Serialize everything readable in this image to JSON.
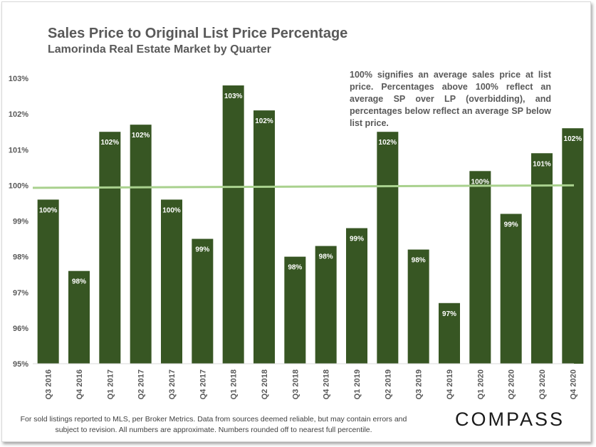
{
  "title": "Sales Price to Original List Price Percentage",
  "subtitle": "Lamorinda Real Estate Market by Quarter",
  "annotation": "100% signifies an average sales price at list price. Percentages above 100% reflect an average SP over LP (overbidding), and percentages below reflect an average SP below list price.",
  "footnote": "For sold listings reported to MLS, per Broker Metrics. Data from sources deemed reliable, but may contain errors and subject to revision. All numbers are approximate. Numbers rounded off to nearest full percentile.",
  "logo": "COMPASS",
  "colors": {
    "bar": "#375623",
    "reference_line": "#a9d18e",
    "text": "#595959"
  },
  "chart_data": {
    "type": "bar",
    "categories": [
      "Q3 2016",
      "Q4 2016",
      "Q1 2017",
      "Q2 2017",
      "Q3 2017",
      "Q4 2017",
      "Q1 2018",
      "Q2 2018",
      "Q3 2018",
      "Q4 2018",
      "Q1 2019",
      "Q2 2019",
      "Q3 2019",
      "Q4 2019",
      "Q1 2020",
      "Q2 2020",
      "Q3 2020",
      "Q4 2020"
    ],
    "values": [
      99.6,
      97.6,
      101.5,
      101.7,
      99.6,
      98.5,
      102.8,
      102.1,
      98.0,
      98.3,
      98.8,
      101.5,
      98.2,
      96.7,
      100.4,
      99.2,
      100.9,
      101.6
    ],
    "data_labels": [
      "100%",
      "98%",
      "102%",
      "102%",
      "100%",
      "99%",
      "103%",
      "102%",
      "98%",
      "98%",
      "99%",
      "102%",
      "98%",
      "97%",
      "100%",
      "99%",
      "101%",
      "102%"
    ],
    "ylim": [
      95,
      103
    ],
    "yticks": [
      95,
      96,
      97,
      98,
      99,
      100,
      101,
      102,
      103
    ],
    "ytick_labels": [
      "95%",
      "96%",
      "97%",
      "98%",
      "99%",
      "100%",
      "101%",
      "102%",
      "103%"
    ],
    "reference_line": {
      "start": 99.93,
      "end": 100.0
    },
    "grid": false
  }
}
